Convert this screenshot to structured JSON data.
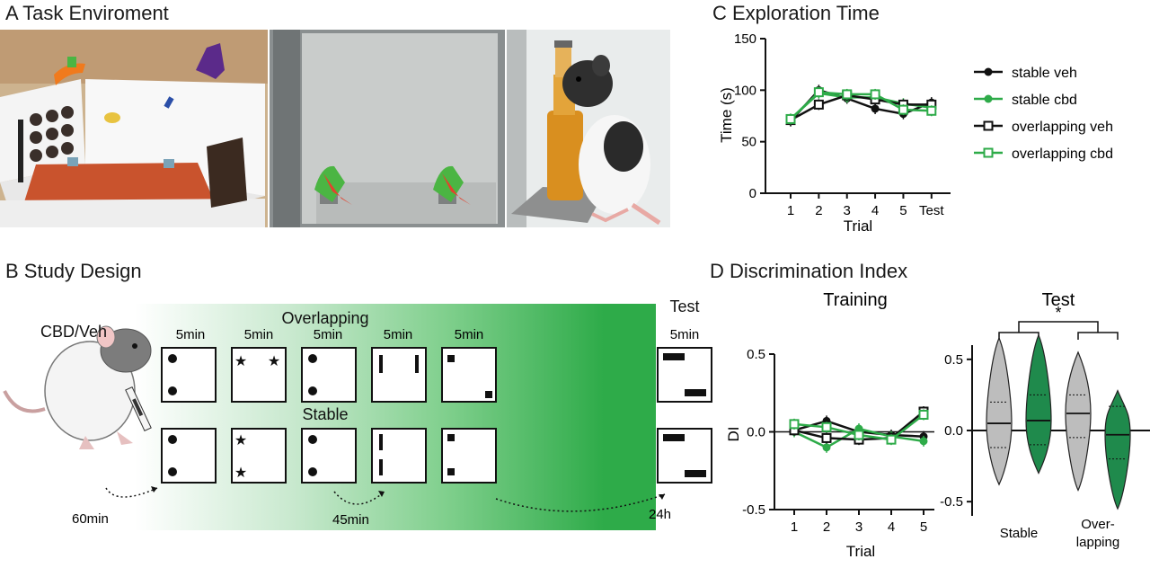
{
  "panels": {
    "a": {
      "title": "A Task Enviroment"
    },
    "b": {
      "title": "B Study Design"
    },
    "c": {
      "title": "C Exploration Time"
    },
    "d": {
      "title": "D Discrimination Index"
    }
  },
  "study_design": {
    "drug_label": "CBD/Veh",
    "overlapping_label": "Overlapping",
    "stable_label": "Stable",
    "test_label": "Test",
    "durations": [
      "5min",
      "5min",
      "5min",
      "5min",
      "5min"
    ],
    "test_duration": "5min",
    "delays": {
      "pre": "60min",
      "inter": "45min",
      "test": "24h"
    },
    "gradient_color": "#2eab49"
  },
  "chart_data": [
    {
      "type": "line",
      "title": "",
      "xlabel": "Trial",
      "ylabel": "Time (s)",
      "x": [
        "1",
        "2",
        "3",
        "4",
        "5",
        "Test"
      ],
      "ylim": [
        0,
        150
      ],
      "yticks": [
        0,
        50,
        100,
        150
      ],
      "legend_position": "right",
      "series": [
        {
          "name": "stable veh",
          "color": "#111111",
          "marker": "filled-circle",
          "values": [
            70,
            100,
            92,
            82,
            77,
            88
          ]
        },
        {
          "name": "stable cbd",
          "color": "#2eab49",
          "marker": "filled-circle",
          "values": [
            72,
            97,
            93,
            93,
            87,
            83
          ]
        },
        {
          "name": "overlapping veh",
          "color": "#111111",
          "marker": "open-square",
          "values": [
            71,
            86,
            95,
            91,
            86,
            86
          ]
        },
        {
          "name": "overlapping cbd",
          "color": "#2eab49",
          "marker": "open-square",
          "values": [
            72,
            98,
            96,
            96,
            81,
            80
          ]
        }
      ]
    },
    {
      "type": "line",
      "title": "Training",
      "xlabel": "Trial",
      "ylabel": "DI",
      "x": [
        "1",
        "2",
        "3",
        "4",
        "5"
      ],
      "ylim": [
        -0.5,
        0.5
      ],
      "yticks": [
        -0.5,
        0.0,
        0.5
      ],
      "series": [
        {
          "name": "stable veh",
          "color": "#111111",
          "marker": "filled-circle",
          "values": [
            0.01,
            0.07,
            0.0,
            -0.02,
            -0.03
          ]
        },
        {
          "name": "stable cbd",
          "color": "#2eab49",
          "marker": "filled-circle",
          "values": [
            0.0,
            -0.1,
            0.02,
            -0.03,
            -0.06
          ]
        },
        {
          "name": "overlapping veh",
          "color": "#111111",
          "marker": "open-square",
          "values": [
            0.01,
            -0.04,
            -0.05,
            -0.04,
            0.13
          ]
        },
        {
          "name": "overlapping cbd",
          "color": "#2eab49",
          "marker": "open-square",
          "values": [
            0.05,
            0.03,
            -0.02,
            -0.05,
            0.11
          ]
        }
      ]
    },
    {
      "type": "violin",
      "title": "Test",
      "ylabel": "",
      "ylim": [
        -0.6,
        0.6
      ],
      "yticks": [
        -0.5,
        0.0,
        0.5
      ],
      "group_labels": [
        "Stable",
        "Over-\nlapping"
      ],
      "significance": "*",
      "violins": [
        {
          "group": "Stable",
          "treatment": "veh",
          "color": "#bdbdbd",
          "min": -0.38,
          "max": 0.65,
          "median": 0.05,
          "q1": -0.12,
          "q3": 0.2
        },
        {
          "group": "Stable",
          "treatment": "cbd",
          "color": "#1f8a4c",
          "min": -0.3,
          "max": 0.67,
          "median": 0.07,
          "q1": -0.1,
          "q3": 0.25
        },
        {
          "group": "Overlapping",
          "treatment": "veh",
          "color": "#bdbdbd",
          "min": -0.42,
          "max": 0.55,
          "median": 0.12,
          "q1": -0.05,
          "q3": 0.25
        },
        {
          "group": "Overlapping",
          "treatment": "cbd",
          "color": "#1f8a4c",
          "min": -0.55,
          "max": 0.28,
          "median": -0.03,
          "q1": -0.2,
          "q3": 0.17
        }
      ]
    }
  ]
}
